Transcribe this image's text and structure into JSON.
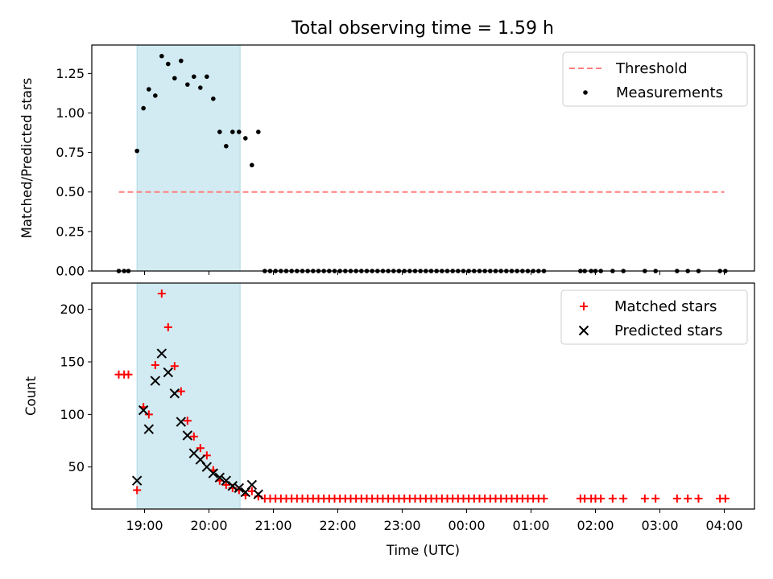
{
  "title": "Total observing time = 1.59 h",
  "x_tick_labels": [
    "19:00",
    "20:00",
    "21:00",
    "22:00",
    "23:00",
    "00:00",
    "01:00",
    "02:00",
    "03:00",
    "04:00"
  ],
  "colors": {
    "threshold": "#ff7f7f",
    "measurement": "#000000",
    "matched": "#ff0000",
    "predicted": "#000000",
    "shade": "#add8e6"
  },
  "chart_data": [
    {
      "type": "scatter",
      "title": "Total observing time = 1.59 h",
      "ylabel": "Matched/Predicted stars",
      "xlabel": "",
      "x_unit": "hours after 18:00 UTC",
      "ylim": [
        0,
        1.43
      ],
      "y_ticks": [
        "0.00",
        "0.25",
        "0.50",
        "0.75",
        "1.00",
        "1.25"
      ],
      "legend_position": "top-right",
      "shaded_interval": [
        "18:53",
        "20:29"
      ],
      "threshold": {
        "name": "Threshold",
        "value": 0.5,
        "x_range": [
          "18:36",
          "04:00"
        ]
      },
      "series": [
        {
          "name": "Measurements",
          "points": [
            [
              "18:36",
              0
            ],
            [
              "18:41",
              0
            ],
            [
              "18:45",
              0
            ],
            [
              "18:53",
              0.76
            ],
            [
              "18:59",
              1.03
            ],
            [
              "19:04",
              1.15
            ],
            [
              "19:10",
              1.11
            ],
            [
              "19:16",
              1.36
            ],
            [
              "19:22",
              1.31
            ],
            [
              "19:28",
              1.22
            ],
            [
              "19:34",
              1.33
            ],
            [
              "19:40",
              1.18
            ],
            [
              "19:46",
              1.23
            ],
            [
              "19:52",
              1.16
            ],
            [
              "19:58",
              1.23
            ],
            [
              "20:04",
              1.09
            ],
            [
              "20:10",
              0.88
            ],
            [
              "20:16",
              0.79
            ],
            [
              "20:22",
              0.88
            ],
            [
              "20:28",
              0.88
            ],
            [
              "20:34",
              0.84
            ],
            [
              "20:40",
              0.67
            ],
            [
              "20:46",
              0.88
            ],
            [
              "20:52",
              0
            ],
            [
              "20:57",
              0
            ],
            [
              "21:02",
              0
            ],
            [
              "21:07",
              0
            ],
            [
              "21:12",
              0
            ],
            [
              "21:17",
              0
            ],
            [
              "21:22",
              0
            ],
            [
              "21:27",
              0
            ],
            [
              "21:32",
              0
            ],
            [
              "21:37",
              0
            ],
            [
              "21:42",
              0
            ],
            [
              "21:47",
              0
            ],
            [
              "21:52",
              0
            ],
            [
              "21:57",
              0
            ],
            [
              "22:02",
              0
            ],
            [
              "22:07",
              0
            ],
            [
              "22:12",
              0
            ],
            [
              "22:17",
              0
            ],
            [
              "22:22",
              0
            ],
            [
              "22:27",
              0
            ],
            [
              "22:32",
              0
            ],
            [
              "22:37",
              0
            ],
            [
              "22:42",
              0
            ],
            [
              "22:47",
              0
            ],
            [
              "22:52",
              0
            ],
            [
              "22:57",
              0
            ],
            [
              "23:02",
              0
            ],
            [
              "23:07",
              0
            ],
            [
              "23:12",
              0
            ],
            [
              "23:17",
              0
            ],
            [
              "23:22",
              0
            ],
            [
              "23:27",
              0
            ],
            [
              "23:32",
              0
            ],
            [
              "23:37",
              0
            ],
            [
              "23:42",
              0
            ],
            [
              "23:47",
              0
            ],
            [
              "23:52",
              0
            ],
            [
              "23:57",
              0
            ],
            [
              "00:02",
              0
            ],
            [
              "00:07",
              0
            ],
            [
              "00:12",
              0
            ],
            [
              "00:17",
              0
            ],
            [
              "00:22",
              0
            ],
            [
              "00:27",
              0
            ],
            [
              "00:32",
              0
            ],
            [
              "00:37",
              0
            ],
            [
              "00:42",
              0
            ],
            [
              "00:47",
              0
            ],
            [
              "00:52",
              0
            ],
            [
              "00:57",
              0
            ],
            [
              "01:02",
              0
            ],
            [
              "01:07",
              0
            ],
            [
              "01:12",
              0
            ],
            [
              "01:46",
              0
            ],
            [
              "01:50",
              0
            ],
            [
              "01:56",
              0
            ],
            [
              "02:00",
              0
            ],
            [
              "02:05",
              0
            ],
            [
              "02:16",
              0
            ],
            [
              "02:26",
              0
            ],
            [
              "02:46",
              0
            ],
            [
              "02:56",
              0
            ],
            [
              "03:16",
              0
            ],
            [
              "03:26",
              0
            ],
            [
              "03:36",
              0
            ],
            [
              "03:56",
              0
            ],
            [
              "04:01",
              0
            ]
          ]
        }
      ]
    },
    {
      "type": "scatter",
      "title": "",
      "ylabel": "Count",
      "xlabel": "Time (UTC)",
      "x_unit": "hours after 18:00 UTC",
      "ylim": [
        10,
        225
      ],
      "y_ticks": [
        "50",
        "100",
        "150",
        "200"
      ],
      "legend_position": "top-right",
      "shaded_interval": [
        "18:53",
        "20:29"
      ],
      "series": [
        {
          "name": "Matched stars",
          "marker": "plus",
          "points": [
            [
              "18:36",
              138
            ],
            [
              "18:41",
              138
            ],
            [
              "18:45",
              138
            ],
            [
              "18:53",
              28
            ],
            [
              "18:59",
              107
            ],
            [
              "19:04",
              100
            ],
            [
              "19:10",
              147
            ],
            [
              "19:16",
              215
            ],
            [
              "19:22",
              183
            ],
            [
              "19:28",
              146
            ],
            [
              "19:34",
              122
            ],
            [
              "19:40",
              94
            ],
            [
              "19:46",
              79
            ],
            [
              "19:52",
              68
            ],
            [
              "19:58",
              61
            ],
            [
              "20:04",
              47
            ],
            [
              "20:10",
              37
            ],
            [
              "20:16",
              33
            ],
            [
              "20:22",
              30
            ],
            [
              "20:28",
              28
            ],
            [
              "20:34",
              23
            ],
            [
              "20:40",
              27
            ],
            [
              "20:46",
              22
            ],
            [
              "20:52",
              20
            ],
            [
              "20:57",
              20
            ],
            [
              "21:02",
              20
            ],
            [
              "21:07",
              20
            ],
            [
              "21:12",
              20
            ],
            [
              "21:17",
              20
            ],
            [
              "21:22",
              20
            ],
            [
              "21:27",
              20
            ],
            [
              "21:32",
              20
            ],
            [
              "21:37",
              20
            ],
            [
              "21:42",
              20
            ],
            [
              "21:47",
              20
            ],
            [
              "21:52",
              20
            ],
            [
              "21:57",
              20
            ],
            [
              "22:02",
              20
            ],
            [
              "22:07",
              20
            ],
            [
              "22:12",
              20
            ],
            [
              "22:17",
              20
            ],
            [
              "22:22",
              20
            ],
            [
              "22:27",
              20
            ],
            [
              "22:32",
              20
            ],
            [
              "22:37",
              20
            ],
            [
              "22:42",
              20
            ],
            [
              "22:47",
              20
            ],
            [
              "22:52",
              20
            ],
            [
              "22:57",
              20
            ],
            [
              "23:02",
              20
            ],
            [
              "23:07",
              20
            ],
            [
              "23:12",
              20
            ],
            [
              "23:17",
              20
            ],
            [
              "23:22",
              20
            ],
            [
              "23:27",
              20
            ],
            [
              "23:32",
              20
            ],
            [
              "23:37",
              20
            ],
            [
              "23:42",
              20
            ],
            [
              "23:47",
              20
            ],
            [
              "23:52",
              20
            ],
            [
              "23:57",
              20
            ],
            [
              "00:02",
              20
            ],
            [
              "00:07",
              20
            ],
            [
              "00:12",
              20
            ],
            [
              "00:17",
              20
            ],
            [
              "00:22",
              20
            ],
            [
              "00:27",
              20
            ],
            [
              "00:32",
              20
            ],
            [
              "00:37",
              20
            ],
            [
              "00:42",
              20
            ],
            [
              "00:47",
              20
            ],
            [
              "00:52",
              20
            ],
            [
              "00:57",
              20
            ],
            [
              "01:02",
              20
            ],
            [
              "01:07",
              20
            ],
            [
              "01:12",
              20
            ],
            [
              "01:46",
              20
            ],
            [
              "01:50",
              20
            ],
            [
              "01:56",
              20
            ],
            [
              "02:00",
              20
            ],
            [
              "02:05",
              20
            ],
            [
              "02:16",
              20
            ],
            [
              "02:26",
              20
            ],
            [
              "02:46",
              20
            ],
            [
              "02:56",
              20
            ],
            [
              "03:16",
              20
            ],
            [
              "03:26",
              20
            ],
            [
              "03:36",
              20
            ],
            [
              "03:56",
              20
            ],
            [
              "04:01",
              20
            ]
          ]
        },
        {
          "name": "Predicted stars",
          "marker": "x",
          "points": [
            [
              "18:53",
              37
            ],
            [
              "18:59",
              104
            ],
            [
              "19:04",
              86
            ],
            [
              "19:10",
              132
            ],
            [
              "19:16",
              158
            ],
            [
              "19:22",
              140
            ],
            [
              "19:28",
              120
            ],
            [
              "19:34",
              93
            ],
            [
              "19:40",
              80
            ],
            [
              "19:46",
              63
            ],
            [
              "19:52",
              57
            ],
            [
              "19:58",
              50
            ],
            [
              "20:04",
              44
            ],
            [
              "20:10",
              40
            ],
            [
              "20:16",
              37
            ],
            [
              "20:22",
              32
            ],
            [
              "20:28",
              30
            ],
            [
              "20:34",
              26
            ],
            [
              "20:40",
              33
            ],
            [
              "20:46",
              24
            ]
          ]
        }
      ]
    }
  ]
}
